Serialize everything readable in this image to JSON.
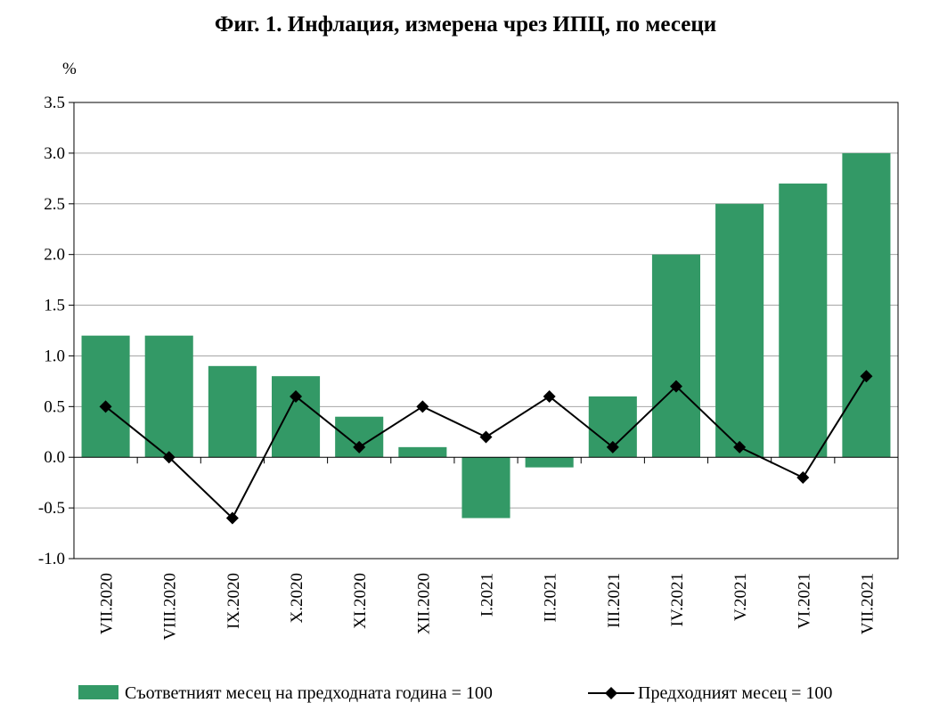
{
  "chart_data": {
    "type": "bar",
    "title": "Фиг. 1. Инфлация, измерена чрез ИПЦ, по месеци",
    "ylabel": "%",
    "xlabel": "",
    "ylim": [
      -1.0,
      3.5
    ],
    "yticks": [
      "3.5",
      "3.0",
      "2.5",
      "2.0",
      "1.5",
      "1.0",
      "0.5",
      "0.0",
      "-0.5",
      "-1.0"
    ],
    "grid": true,
    "legend_position": "bottom",
    "categories": [
      "VII.2020",
      "VIII.2020",
      "IX.2020",
      "X.2020",
      "XI.2020",
      "XII.2020",
      "I.2021",
      "II.2021",
      "III.2021",
      "IV.2021",
      "V.2021",
      "VI.2021",
      "VII.2021"
    ],
    "series": [
      {
        "name": "Съответният месец на предходната година = 100",
        "type": "bar",
        "color": "#339966",
        "values": [
          1.2,
          1.2,
          0.9,
          0.8,
          0.4,
          0.1,
          -0.6,
          -0.1,
          0.6,
          2.0,
          2.5,
          2.7,
          3.0
        ]
      },
      {
        "name": "Предходният месец = 100",
        "type": "line",
        "marker": "diamond",
        "color": "#000000",
        "values": [
          0.5,
          0.0,
          -0.6,
          0.6,
          0.1,
          0.5,
          0.2,
          0.6,
          0.1,
          0.7,
          0.1,
          -0.2,
          0.8
        ]
      }
    ]
  }
}
